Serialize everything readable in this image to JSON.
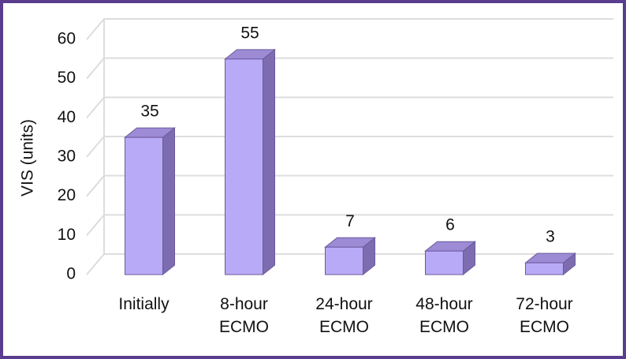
{
  "chart_data": {
    "type": "bar3d",
    "y_label": "VIS (units)",
    "categories": [
      "Initially",
      "8-hour ECMO",
      "24-hour ECMO",
      "48-hour ECMO",
      "72-hour ECMO"
    ],
    "values": [
      35,
      55,
      7,
      6,
      3
    ],
    "color": "#b9aaf8",
    "ylim": [
      0,
      60
    ],
    "yticks": [
      0,
      10,
      20,
      30,
      40,
      50,
      60
    ],
    "grid": true
  }
}
